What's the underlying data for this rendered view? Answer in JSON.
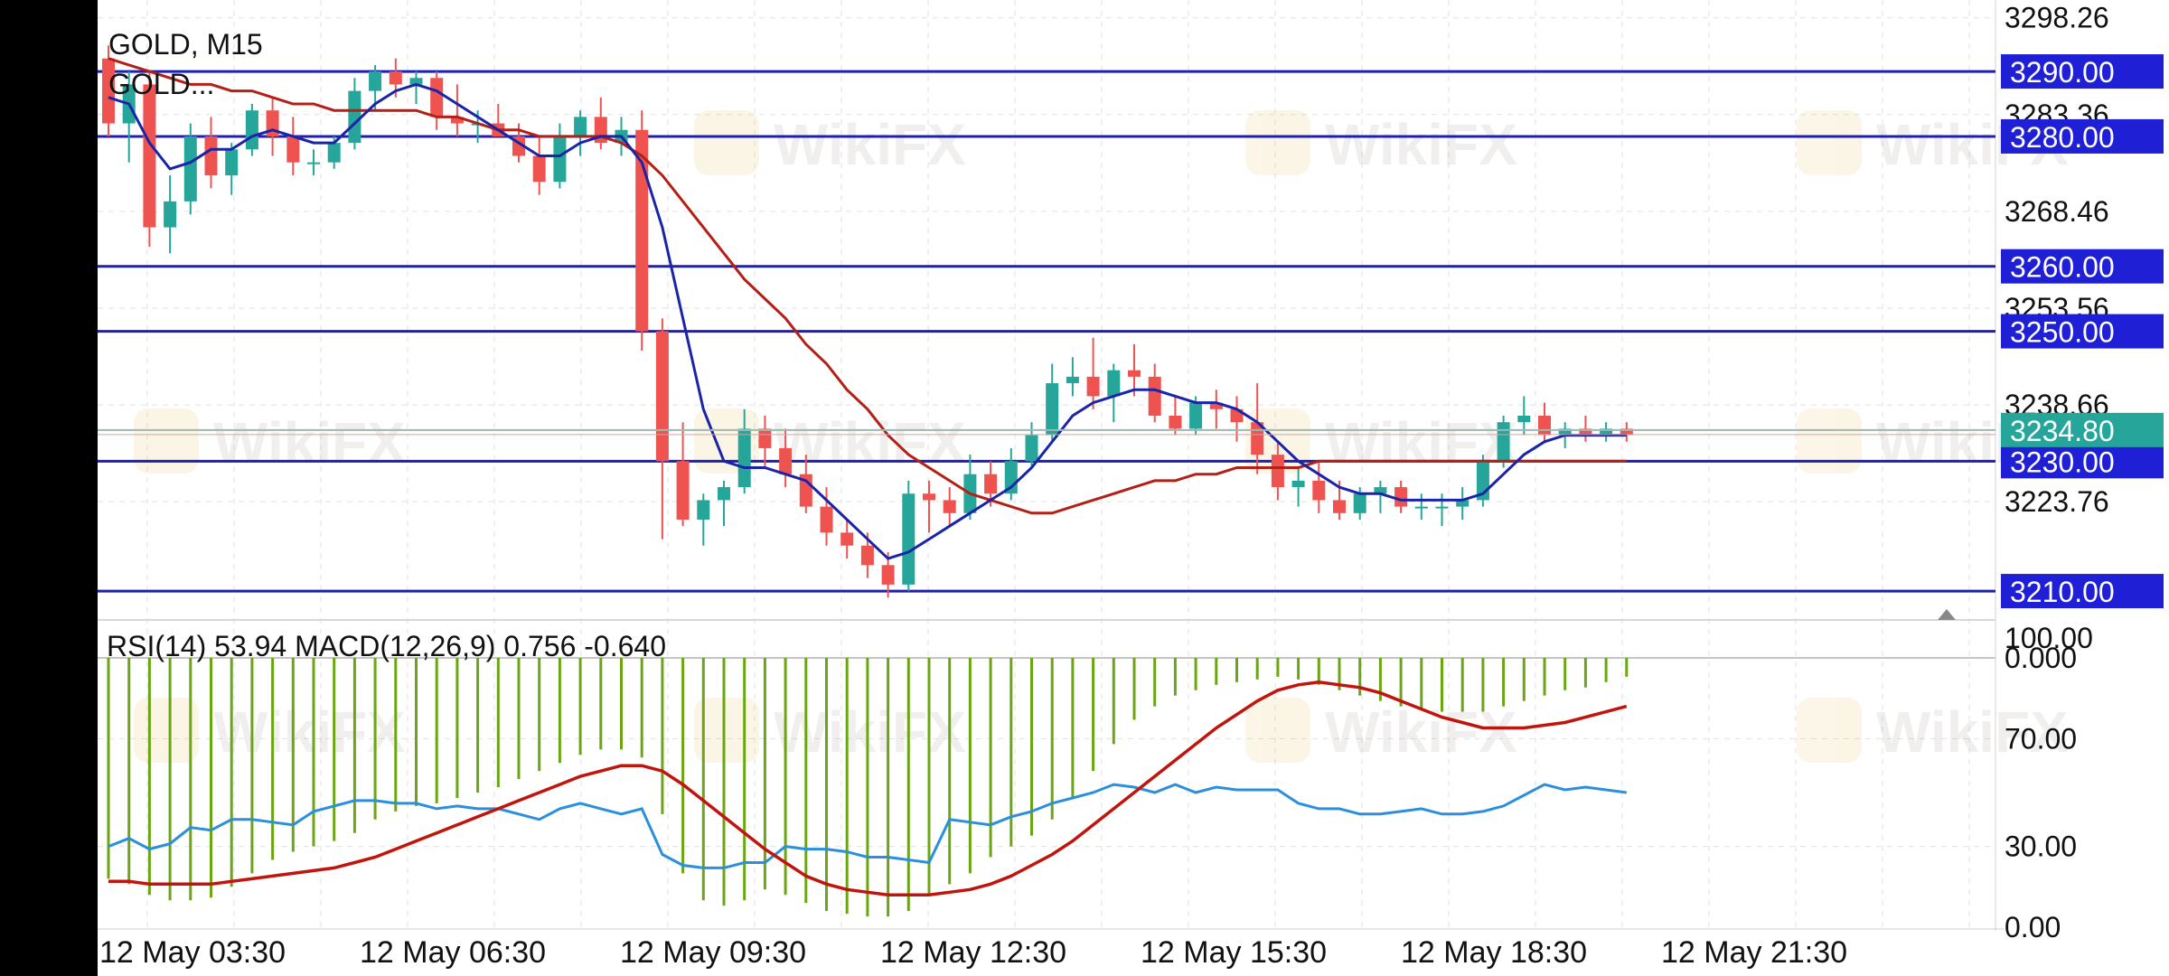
{
  "header": {
    "symbol_timeframe": "GOLD, M15",
    "indicator_short": "GOLD..."
  },
  "watermark": "WikiFX",
  "price_axis": {
    "tick_labels": [
      "3298.26",
      "3283.36",
      "3268.46",
      "3253.56",
      "3238.66",
      "3223.76"
    ],
    "ylim": [
      3205,
      3301
    ],
    "current_price": "3234.80",
    "current_price_value": 3234.8
  },
  "levels": [
    {
      "label": "3290.00",
      "value": 3290
    },
    {
      "label": "3280.00",
      "value": 3280
    },
    {
      "label": "3260.00",
      "value": 3260
    },
    {
      "label": "3250.00",
      "value": 3250
    },
    {
      "label": "3230.00",
      "value": 3230
    },
    {
      "label": "3210.00",
      "value": 3210
    }
  ],
  "sub_window": {
    "label": "RSI(14) 53.94 MACD(12,26,9) 0.756 -0.640",
    "tick_labels": [
      "100.00",
      "0.000",
      "70.00",
      "30.00",
      "0.00"
    ]
  },
  "time_axis": {
    "labels": [
      "12 May 03:30",
      "12 May 06:30",
      "12 May 09:30",
      "12 May 12:30",
      "12 May 15:30",
      "12 May 18:30",
      "12 May 21:30"
    ]
  },
  "colors": {
    "bull": "#26a69a",
    "bear": "#ef5350",
    "level_line": "#1f1fb5",
    "level_label_bg": "#1f1fd6",
    "fast_ma": "#1a24a8",
    "slow_ma": "#b22016",
    "rsi": "#2b8fdc",
    "macd_signal": "#c0140c",
    "macd_hist": "#6aa612",
    "current_price_bg": "#26a69a"
  },
  "chart_data": [
    {
      "type": "candlestick",
      "title": "GOLD, M15",
      "ylim": [
        3205,
        3301
      ],
      "candles": [
        [
          3292,
          3294,
          3280,
          3282
        ],
        [
          3282,
          3290,
          3276,
          3288
        ],
        [
          3288,
          3290,
          3263,
          3266
        ],
        [
          3266,
          3274,
          3262,
          3270
        ],
        [
          3270,
          3282,
          3268,
          3280
        ],
        [
          3280,
          3283,
          3272,
          3274
        ],
        [
          3274,
          3279,
          3271,
          3278
        ],
        [
          3278,
          3285,
          3277,
          3284
        ],
        [
          3284,
          3286,
          3277,
          3280
        ],
        [
          3280,
          3283,
          3274,
          3276
        ],
        [
          3276,
          3278,
          3274,
          3276
        ],
        [
          3276,
          3280,
          3275,
          3279
        ],
        [
          3279,
          3289,
          3278,
          3287
        ],
        [
          3287,
          3291,
          3284,
          3290
        ],
        [
          3290,
          3292,
          3286,
          3288
        ],
        [
          3288,
          3290,
          3285,
          3289
        ],
        [
          3289,
          3290,
          3281,
          3283
        ],
        [
          3283,
          3288,
          3280,
          3282
        ],
        [
          3282,
          3284,
          3279,
          3282
        ],
        [
          3282,
          3285,
          3280,
          3280
        ],
        [
          3280,
          3282,
          3276,
          3277
        ],
        [
          3277,
          3280,
          3271,
          3273
        ],
        [
          3273,
          3282,
          3272,
          3280
        ],
        [
          3280,
          3284,
          3277,
          3283
        ],
        [
          3283,
          3286,
          3278,
          3279
        ],
        [
          3279,
          3283,
          3277,
          3281
        ],
        [
          3281,
          3284,
          3247,
          3250
        ],
        [
          3250,
          3252,
          3218,
          3230
        ],
        [
          3230,
          3236,
          3220,
          3221
        ],
        [
          3221,
          3225,
          3217,
          3224
        ],
        [
          3224,
          3227,
          3220,
          3226
        ],
        [
          3226,
          3238,
          3225,
          3235
        ],
        [
          3235,
          3237,
          3229,
          3232
        ],
        [
          3232,
          3235,
          3226,
          3228
        ],
        [
          3228,
          3231,
          3222,
          3223
        ],
        [
          3223,
          3226,
          3217,
          3219
        ],
        [
          3219,
          3221,
          3215,
          3217
        ],
        [
          3217,
          3219,
          3212,
          3214
        ],
        [
          3214,
          3216,
          3209,
          3211
        ],
        [
          3211,
          3227,
          3210,
          3225
        ],
        [
          3225,
          3227,
          3219,
          3224
        ],
        [
          3224,
          3226,
          3220,
          3222
        ],
        [
          3222,
          3231,
          3221,
          3228
        ],
        [
          3228,
          3230,
          3223,
          3225
        ],
        [
          3225,
          3232,
          3224,
          3230
        ],
        [
          3230,
          3236,
          3229,
          3234
        ],
        [
          3234,
          3245,
          3233,
          3242
        ],
        [
          3242,
          3246,
          3240,
          3243
        ],
        [
          3243,
          3249,
          3238,
          3240
        ],
        [
          3240,
          3245,
          3236,
          3244
        ],
        [
          3244,
          3248,
          3240,
          3243
        ],
        [
          3243,
          3245,
          3236,
          3237
        ],
        [
          3237,
          3240,
          3234,
          3235
        ],
        [
          3235,
          3240,
          3234,
          3239
        ],
        [
          3239,
          3241,
          3235,
          3238
        ],
        [
          3238,
          3240,
          3233,
          3236
        ],
        [
          3236,
          3242,
          3228,
          3231
        ],
        [
          3231,
          3233,
          3224,
          3226
        ],
        [
          3226,
          3229,
          3223,
          3227
        ],
        [
          3227,
          3230,
          3222,
          3224
        ],
        [
          3224,
          3227,
          3221,
          3222
        ],
        [
          3222,
          3226,
          3221,
          3225
        ],
        [
          3225,
          3227,
          3222,
          3226
        ],
        [
          3226,
          3227,
          3222,
          3223
        ],
        [
          3223,
          3225,
          3221,
          3223
        ],
        [
          3223,
          3225,
          3220,
          3223
        ],
        [
          3223,
          3226,
          3221,
          3224
        ],
        [
          3224,
          3231,
          3223,
          3230
        ],
        [
          3230,
          3237,
          3229,
          3236
        ],
        [
          3236,
          3240,
          3234,
          3237
        ],
        [
          3237,
          3239,
          3233,
          3234
        ],
        [
          3234,
          3236,
          3232,
          3235
        ],
        [
          3235,
          3237,
          3233,
          3234
        ],
        [
          3234,
          3236,
          3233,
          3235
        ],
        [
          3235,
          3236,
          3233,
          3234
        ]
      ],
      "fast_ma": [
        3286,
        3285,
        3279,
        3275,
        3276,
        3278,
        3278,
        3280,
        3281,
        3280,
        3279,
        3279,
        3282,
        3285,
        3287,
        3288,
        3287,
        3285,
        3283,
        3281,
        3279,
        3277,
        3277,
        3279,
        3280,
        3280,
        3276,
        3266,
        3252,
        3238,
        3230,
        3229,
        3229,
        3228,
        3227,
        3224,
        3221,
        3218,
        3215,
        3216,
        3218,
        3220,
        3222,
        3224,
        3226,
        3229,
        3233,
        3237,
        3239,
        3240,
        3241,
        3241,
        3240,
        3239,
        3239,
        3238,
        3236,
        3233,
        3230,
        3228,
        3226,
        3225,
        3225,
        3224,
        3224,
        3224,
        3224,
        3225,
        3228,
        3231,
        3233,
        3234,
        3234,
        3234,
        3234
      ],
      "slow_ma": [
        3292,
        3291,
        3290,
        3289,
        3288,
        3288,
        3287,
        3287,
        3286,
        3285,
        3285,
        3284,
        3284,
        3284,
        3284,
        3284,
        3283,
        3283,
        3282,
        3281,
        3281,
        3280,
        3280,
        3280,
        3280,
        3279,
        3277,
        3274,
        3270,
        3266,
        3262,
        3258,
        3255,
        3252,
        3248,
        3245,
        3241,
        3238,
        3234,
        3231,
        3229,
        3227,
        3225,
        3224,
        3223,
        3222,
        3222,
        3223,
        3224,
        3225,
        3226,
        3227,
        3227,
        3228,
        3228,
        3229,
        3229,
        3229,
        3229,
        3230,
        3230,
        3230,
        3230,
        3230,
        3230,
        3230,
        3230,
        3230,
        3230,
        3230,
        3230,
        3230,
        3230,
        3230,
        3230
      ]
    },
    {
      "type": "line",
      "title": "RSI(14) 53.94 MACD(12,26,9) 0.756 -0.640",
      "ylim": [
        0,
        100
      ],
      "series": [
        {
          "name": "RSI(14)",
          "values": [
            30,
            33,
            29,
            31,
            37,
            36,
            40,
            40,
            39,
            38,
            43,
            45,
            47,
            47,
            46,
            46,
            44,
            45,
            44,
            44,
            42,
            40,
            44,
            46,
            44,
            42,
            44,
            27,
            23,
            22,
            22,
            24,
            24,
            30,
            29,
            29,
            28,
            26,
            26,
            25,
            24,
            40,
            39,
            38,
            41,
            43,
            46,
            48,
            50,
            53,
            52,
            50,
            53,
            50,
            52,
            51,
            51,
            51,
            46,
            44,
            44,
            42,
            42,
            43,
            44,
            42,
            42,
            43,
            45,
            49,
            53,
            51,
            52,
            51,
            50
          ]
        },
        {
          "name": "MACD signal",
          "values": [
            17,
            17,
            16,
            16,
            16,
            16,
            17,
            18,
            19,
            20,
            21,
            22,
            24,
            26,
            29,
            32,
            35,
            38,
            41,
            44,
            47,
            50,
            53,
            56,
            58,
            60,
            60,
            58,
            53,
            47,
            41,
            35,
            29,
            24,
            19,
            16,
            14,
            13,
            12,
            12,
            12,
            13,
            14,
            16,
            19,
            23,
            27,
            32,
            38,
            44,
            50,
            56,
            62,
            68,
            74,
            79,
            84,
            88,
            90,
            91,
            90,
            89,
            87,
            84,
            81,
            78,
            76,
            74,
            74,
            74,
            75,
            76,
            78,
            80,
            82
          ]
        },
        {
          "name": "MACD",
          "values": [
            18,
            16,
            12,
            10,
            10,
            11,
            15,
            20,
            25,
            28,
            30,
            32,
            35,
            40,
            43,
            45,
            46,
            48,
            50,
            52,
            55,
            58,
            61,
            64,
            66,
            66,
            63,
            42,
            20,
            10,
            8,
            10,
            14,
            12,
            9,
            6,
            5,
            4,
            4,
            6,
            12,
            16,
            20,
            26,
            30,
            34,
            40,
            48,
            58,
            68,
            77,
            82,
            86,
            88,
            90,
            91,
            92,
            93,
            92,
            90,
            88,
            86,
            84,
            82,
            81,
            80,
            80,
            80,
            82,
            84,
            86,
            88,
            89,
            91,
            93
          ]
        }
      ]
    }
  ]
}
